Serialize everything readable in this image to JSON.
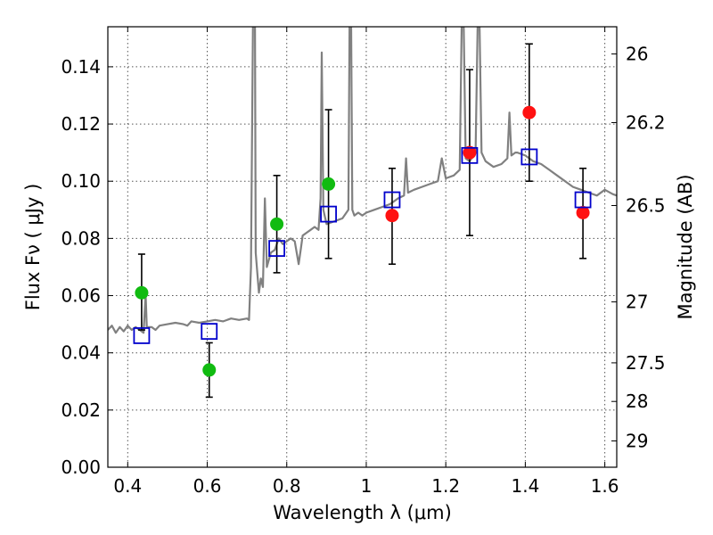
{
  "chart_data": {
    "type": "scatter",
    "xlabel": "Wavelength  λ (μm)",
    "ylabel": "Flux  Fν  ( μJy )",
    "ylabel_right": "Magnitude (AB)",
    "xlim": [
      0.35,
      1.63
    ],
    "ylim": [
      0.0,
      0.154
    ],
    "grid": true,
    "x_ticks": [
      {
        "value": 0.4,
        "label": "0.4"
      },
      {
        "value": 0.6,
        "label": "0.6"
      },
      {
        "value": 0.8,
        "label": "0.8"
      },
      {
        "value": 1.0,
        "label": "1"
      },
      {
        "value": 1.2,
        "label": "1.2"
      },
      {
        "value": 1.4,
        "label": "1.4"
      },
      {
        "value": 1.6,
        "label": "1.6"
      }
    ],
    "y_ticks": [
      {
        "value": 0.0,
        "label": "0.00"
      },
      {
        "value": 0.02,
        "label": "0.02"
      },
      {
        "value": 0.04,
        "label": "0.04"
      },
      {
        "value": 0.06,
        "label": "0.06"
      },
      {
        "value": 0.08,
        "label": "0.08"
      },
      {
        "value": 0.1,
        "label": "0.10"
      },
      {
        "value": 0.12,
        "label": "0.12"
      },
      {
        "value": 0.14,
        "label": "0.14"
      }
    ],
    "right_ticks": [
      {
        "flux": 0.1445,
        "label": "26"
      },
      {
        "flux": 0.1205,
        "label": "26.2"
      },
      {
        "flux": 0.0915,
        "label": "26.5"
      },
      {
        "flux": 0.0578,
        "label": "27"
      },
      {
        "flux": 0.0365,
        "label": "27.5"
      },
      {
        "flux": 0.023,
        "label": "28"
      },
      {
        "flux": 0.0092,
        "label": "29"
      }
    ],
    "colors": {
      "spectrum": "#808080",
      "green": "#11bb11",
      "red": "#ff1111",
      "model": "#0000cc",
      "error": "#000000"
    },
    "series": [
      {
        "marker": "circle-green",
        "points": [
          {
            "x": 0.435,
            "y": 0.061,
            "ylo": 0.048,
            "yhi": 0.0745
          },
          {
            "x": 0.605,
            "y": 0.034,
            "ylo": 0.0245,
            "yhi": 0.0435
          },
          {
            "x": 0.775,
            "y": 0.085,
            "ylo": 0.068,
            "yhi": 0.102
          },
          {
            "x": 0.905,
            "y": 0.099,
            "ylo": 0.073,
            "yhi": 0.125
          }
        ]
      },
      {
        "marker": "circle-red",
        "points": [
          {
            "x": 1.065,
            "y": 0.088,
            "ylo": 0.071,
            "yhi": 0.1045
          },
          {
            "x": 1.26,
            "y": 0.11,
            "ylo": 0.081,
            "yhi": 0.139
          },
          {
            "x": 1.41,
            "y": 0.124,
            "ylo": 0.1,
            "yhi": 0.148
          },
          {
            "x": 1.545,
            "y": 0.089,
            "ylo": 0.073,
            "yhi": 0.1045
          }
        ]
      },
      {
        "marker": "square-blue-open",
        "points": [
          {
            "x": 0.435,
            "y": 0.046
          },
          {
            "x": 0.605,
            "y": 0.0475
          },
          {
            "x": 0.775,
            "y": 0.0765
          },
          {
            "x": 0.905,
            "y": 0.0885
          },
          {
            "x": 1.065,
            "y": 0.0935
          },
          {
            "x": 1.26,
            "y": 0.109
          },
          {
            "x": 1.41,
            "y": 0.1085
          },
          {
            "x": 1.545,
            "y": 0.0935
          }
        ]
      }
    ],
    "spectrum": [
      [
        0.35,
        0.048
      ],
      [
        0.36,
        0.0495
      ],
      [
        0.37,
        0.047
      ],
      [
        0.38,
        0.049
      ],
      [
        0.39,
        0.0475
      ],
      [
        0.4,
        0.0495
      ],
      [
        0.41,
        0.048
      ],
      [
        0.42,
        0.049
      ],
      [
        0.43,
        0.048
      ],
      [
        0.44,
        0.047
      ],
      [
        0.445,
        0.0605
      ],
      [
        0.448,
        0.049
      ],
      [
        0.46,
        0.049
      ],
      [
        0.47,
        0.048
      ],
      [
        0.48,
        0.0495
      ],
      [
        0.5,
        0.05
      ],
      [
        0.52,
        0.0505
      ],
      [
        0.54,
        0.05
      ],
      [
        0.55,
        0.0495
      ],
      [
        0.56,
        0.051
      ],
      [
        0.58,
        0.0505
      ],
      [
        0.6,
        0.051
      ],
      [
        0.62,
        0.0515
      ],
      [
        0.64,
        0.051
      ],
      [
        0.66,
        0.052
      ],
      [
        0.68,
        0.0515
      ],
      [
        0.7,
        0.052
      ],
      [
        0.705,
        0.0515
      ],
      [
        0.71,
        0.07
      ],
      [
        0.715,
        0.154
      ],
      [
        0.72,
        0.154
      ],
      [
        0.722,
        0.075
      ],
      [
        0.73,
        0.061
      ],
      [
        0.735,
        0.066
      ],
      [
        0.74,
        0.063
      ],
      [
        0.745,
        0.094
      ],
      [
        0.75,
        0.07
      ],
      [
        0.76,
        0.075
      ],
      [
        0.77,
        0.076
      ],
      [
        0.78,
        0.08
      ],
      [
        0.79,
        0.078
      ],
      [
        0.8,
        0.079
      ],
      [
        0.81,
        0.08
      ],
      [
        0.82,
        0.079
      ],
      [
        0.83,
        0.071
      ],
      [
        0.835,
        0.076
      ],
      [
        0.84,
        0.081
      ],
      [
        0.85,
        0.082
      ],
      [
        0.86,
        0.083
      ],
      [
        0.87,
        0.084
      ],
      [
        0.88,
        0.083
      ],
      [
        0.885,
        0.094
      ],
      [
        0.888,
        0.145
      ],
      [
        0.892,
        0.09
      ],
      [
        0.9,
        0.085
      ],
      [
        0.92,
        0.086
      ],
      [
        0.94,
        0.087
      ],
      [
        0.955,
        0.09
      ],
      [
        0.958,
        0.154
      ],
      [
        0.962,
        0.154
      ],
      [
        0.965,
        0.09
      ],
      [
        0.97,
        0.088
      ],
      [
        0.98,
        0.089
      ],
      [
        0.99,
        0.088
      ],
      [
        1.0,
        0.089
      ],
      [
        1.02,
        0.09
      ],
      [
        1.04,
        0.091
      ],
      [
        1.06,
        0.092
      ],
      [
        1.07,
        0.093
      ],
      [
        1.08,
        0.094
      ],
      [
        1.095,
        0.095
      ],
      [
        1.1,
        0.108
      ],
      [
        1.105,
        0.096
      ],
      [
        1.12,
        0.097
      ],
      [
        1.14,
        0.098
      ],
      [
        1.16,
        0.099
      ],
      [
        1.18,
        0.1
      ],
      [
        1.19,
        0.108
      ],
      [
        1.2,
        0.101
      ],
      [
        1.22,
        0.102
      ],
      [
        1.235,
        0.104
      ],
      [
        1.24,
        0.154
      ],
      [
        1.245,
        0.154
      ],
      [
        1.25,
        0.108
      ],
      [
        1.26,
        0.107
      ],
      [
        1.275,
        0.11
      ],
      [
        1.28,
        0.154
      ],
      [
        1.285,
        0.154
      ],
      [
        1.29,
        0.11
      ],
      [
        1.3,
        0.107
      ],
      [
        1.32,
        0.105
      ],
      [
        1.34,
        0.106
      ],
      [
        1.355,
        0.108
      ],
      [
        1.36,
        0.124
      ],
      [
        1.365,
        0.109
      ],
      [
        1.375,
        0.11
      ],
      [
        1.38,
        0.11
      ],
      [
        1.4,
        0.109
      ],
      [
        1.42,
        0.107
      ],
      [
        1.44,
        0.106
      ],
      [
        1.46,
        0.104
      ],
      [
        1.48,
        0.102
      ],
      [
        1.5,
        0.1
      ],
      [
        1.52,
        0.098
      ],
      [
        1.54,
        0.097
      ],
      [
        1.56,
        0.096
      ],
      [
        1.58,
        0.095
      ],
      [
        1.6,
        0.097
      ],
      [
        1.62,
        0.0955
      ],
      [
        1.63,
        0.095
      ]
    ]
  }
}
